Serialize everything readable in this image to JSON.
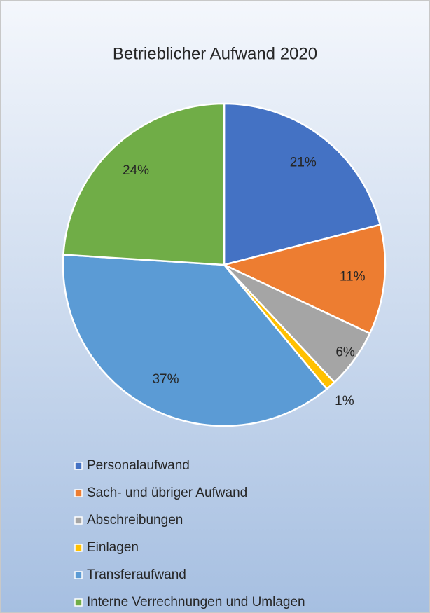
{
  "chart_data": {
    "type": "pie",
    "title": "Betrieblicher Aufwand 2020",
    "categories": [
      "Personalaufwand",
      "Sach- und übriger Aufwand",
      "Abschreibungen",
      "Einlagen",
      "Transferaufwand",
      "Interne Verrechnungen und Umlagen"
    ],
    "values": [
      21,
      11,
      6,
      1,
      37,
      24
    ],
    "value_labels": [
      "21%",
      "11%",
      "6%",
      "1%",
      "37%",
      "24%"
    ],
    "colors": [
      "#4472c4",
      "#ed7d31",
      "#a5a5a5",
      "#ffc000",
      "#5b9bd5",
      "#70ad47"
    ],
    "legend": "bottom"
  }
}
